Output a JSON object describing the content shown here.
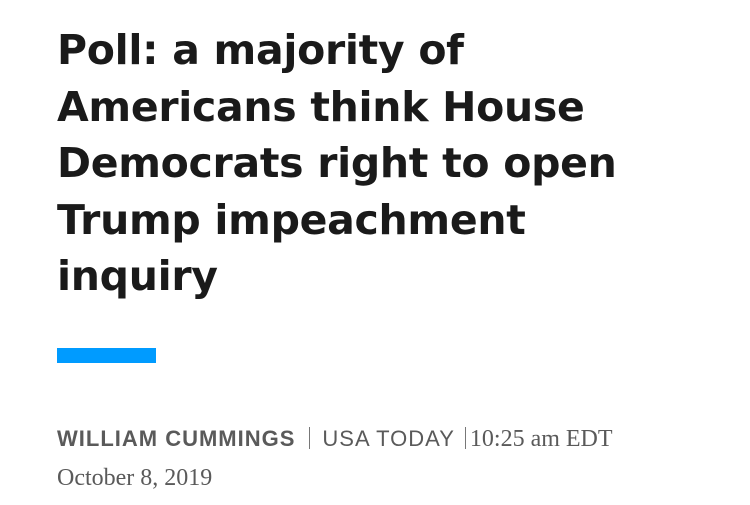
{
  "headline": {
    "lines": [
      "Poll: a majority of",
      "Americans think House",
      "Democrats right to open",
      "Trump impeachment",
      "inquiry"
    ]
  },
  "byline": {
    "author": "WILLIAM CUMMINGS",
    "publication": "USA TODAY",
    "timestamp": "10:25 am EDT October 8, 2019"
  }
}
